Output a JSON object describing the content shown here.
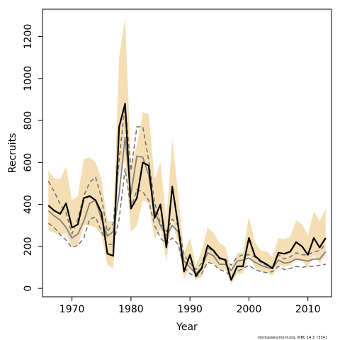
{
  "chart_data": {
    "type": "line",
    "xlabel": "Year",
    "ylabel": "Recruits",
    "xlim": [
      1965,
      2014
    ],
    "ylim": [
      -40,
      1330
    ],
    "xticks": [
      1970,
      1980,
      1990,
      2000,
      2010
    ],
    "yticks": [
      0,
      200,
      400,
      600,
      800,
      1000,
      1200
    ],
    "grid": false,
    "legend": "none",
    "colors": {
      "band": "#f5deb3",
      "main_line": "#000000",
      "median_line": "#808080",
      "dashed_lines": "#707070"
    },
    "x": [
      1966,
      1967,
      1968,
      1969,
      1970,
      1971,
      1972,
      1973,
      1974,
      1975,
      1976,
      1977,
      1978,
      1979,
      1980,
      1981,
      1982,
      1983,
      1984,
      1985,
      1986,
      1987,
      1988,
      1989,
      1990,
      1991,
      1992,
      1993,
      1994,
      1995,
      1996,
      1997,
      1998,
      1999,
      2000,
      2001,
      2002,
      2003,
      2004,
      2005,
      2006,
      2007,
      2008,
      2009,
      2010,
      2011,
      2012,
      2013
    ],
    "series": [
      {
        "role": "main_estimate",
        "values": [
          395,
          370,
          355,
          405,
          290,
          305,
          430,
          440,
          420,
          360,
          165,
          155,
          770,
          880,
          380,
          430,
          600,
          585,
          335,
          400,
          195,
          485,
          300,
          80,
          160,
          60,
          95,
          205,
          180,
          145,
          135,
          40,
          105,
          105,
          240,
          155,
          130,
          115,
          95,
          170,
          165,
          175,
          220,
          200,
          160,
          240,
          195,
          240
        ]
      },
      {
        "role": "median",
        "values": [
          370,
          345,
          325,
          290,
          240,
          260,
          320,
          405,
          420,
          330,
          250,
          270,
          450,
          720,
          450,
          630,
          625,
          540,
          370,
          300,
          250,
          300,
          270,
          130,
          100,
          70,
          100,
          170,
          155,
          115,
          115,
          85,
          130,
          135,
          145,
          125,
          110,
          100,
          95,
          135,
          120,
          125,
          140,
          135,
          130,
          140,
          140,
          175
        ]
      },
      {
        "role": "upper_dashed",
        "values": [
          510,
          460,
          400,
          360,
          260,
          330,
          440,
          505,
          530,
          430,
          270,
          310,
          610,
          880,
          560,
          770,
          770,
          610,
          410,
          310,
          270,
          330,
          300,
          160,
          120,
          90,
          120,
          195,
          175,
          140,
          140,
          110,
          150,
          160,
          160,
          150,
          125,
          110,
          100,
          160,
          140,
          150,
          170,
          160,
          160,
          175,
          180,
          210
        ]
      },
      {
        "role": "lower_dashed",
        "values": [
          310,
          290,
          255,
          230,
          195,
          205,
          240,
          330,
          340,
          270,
          210,
          210,
          330,
          570,
          380,
          470,
          460,
          420,
          300,
          240,
          210,
          240,
          210,
          100,
          70,
          55,
          70,
          125,
          115,
          90,
          80,
          60,
          80,
          95,
          110,
          90,
          80,
          75,
          80,
          105,
          90,
          95,
          105,
          100,
          105,
          105,
          110,
          115
        ]
      },
      {
        "role": "band_upper",
        "values": [
          560,
          525,
          520,
          580,
          420,
          440,
          615,
          625,
          600,
          520,
          320,
          320,
          1100,
          1290,
          590,
          680,
          840,
          830,
          520,
          600,
          330,
          710,
          450,
          170,
          240,
          110,
          180,
          290,
          265,
          215,
          200,
          90,
          170,
          170,
          345,
          220,
          180,
          175,
          150,
          240,
          235,
          245,
          325,
          305,
          255,
          365,
          320,
          380
        ]
      },
      {
        "role": "band_lower",
        "values": [
          275,
          265,
          255,
          265,
          200,
          200,
          300,
          300,
          290,
          255,
          110,
          95,
          550,
          610,
          270,
          300,
          420,
          405,
          235,
          280,
          130,
          325,
          210,
          45,
          100,
          40,
          55,
          130,
          115,
          90,
          90,
          20,
          70,
          70,
          160,
          100,
          80,
          75,
          60,
          110,
          105,
          110,
          145,
          130,
          100,
          160,
          120,
          155
        ]
      }
    ]
  },
  "footnote": "stockassessment.org, WBC 14 3, r3341"
}
